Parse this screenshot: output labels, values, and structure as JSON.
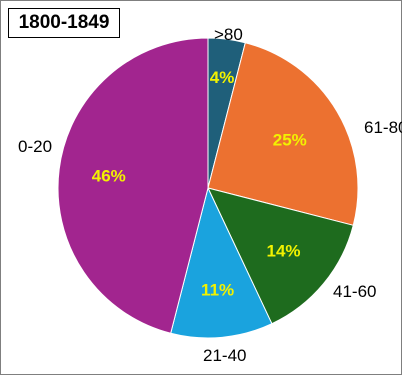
{
  "chart_data": {
    "type": "pie",
    "title": "1800-1849",
    "slices": [
      {
        "category": ">80",
        "percent": 4,
        "label": "4%",
        "color": "#1f5f7a"
      },
      {
        "category": "61-80",
        "percent": 25,
        "label": "25%",
        "color": "#ec7130"
      },
      {
        "category": "41-60",
        "percent": 14,
        "label": "14%",
        "color": "#1e6b1e"
      },
      {
        "category": "21-40",
        "percent": 11,
        "label": "11%",
        "color": "#1aa3de"
      },
      {
        "category": "0-20",
        "percent": 46,
        "label": "46%",
        "color": "#a2258f"
      }
    ],
    "label_color": "#f2f200",
    "start": "top",
    "direction": "clockwise"
  }
}
